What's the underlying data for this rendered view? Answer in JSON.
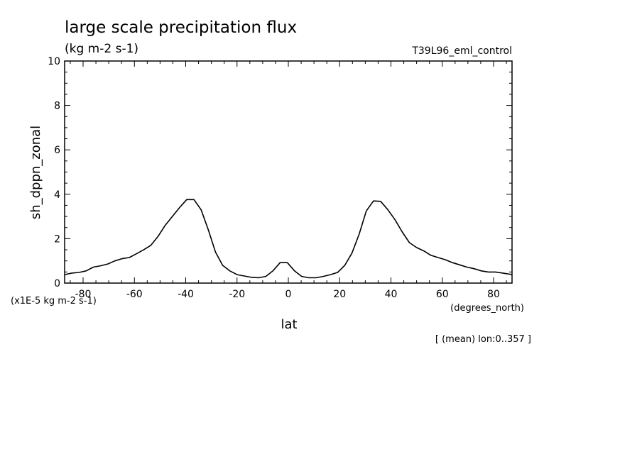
{
  "chart_data": {
    "type": "line",
    "title": "large scale precipitation flux",
    "units": "(kg m-2 s-1)",
    "experiment": "T39L96_eml_control",
    "ylabel": "sh_dppn_zonal",
    "xlabel": "lat",
    "x_units": "(degrees_north)",
    "y_scale_note": "(x1E-5 kg m-2 s-1)",
    "footnote": "[ (mean) lon:0..357 ]",
    "xlim": [
      -87.2,
      87.2
    ],
    "ylim": [
      0,
      10
    ],
    "x_ticks": [
      -80,
      -60,
      -40,
      -20,
      0,
      20,
      40,
      60,
      80
    ],
    "x_tick_labels": [
      "-80",
      "-60",
      "-40",
      "-20",
      "0",
      "20",
      "40",
      "60",
      "80"
    ],
    "y_ticks": [
      0,
      2,
      4,
      6,
      8,
      10
    ],
    "y_tick_labels": [
      "0",
      "2",
      "4",
      "6",
      "8",
      "10"
    ],
    "line_color": "#000000",
    "series": [
      {
        "x": [
          -87.2,
          -84.4,
          -81.6,
          -78.8,
          -76.0,
          -73.2,
          -70.4,
          -67.6,
          -64.8,
          -62.0,
          -59.2,
          -56.4,
          -53.6,
          -50.8,
          -48.0,
          -45.2,
          -42.4,
          -39.6,
          -36.8,
          -34.0,
          -31.2,
          -28.4,
          -25.6,
          -22.8,
          -20.0,
          -17.2,
          -14.4,
          -11.6,
          -8.8,
          -6.0,
          -3.2,
          -0.4,
          2.4,
          5.2,
          8.0,
          10.8,
          13.6,
          16.4,
          19.2,
          22.0,
          24.8,
          27.6,
          30.4,
          33.2,
          36.0,
          38.8,
          41.6,
          44.4,
          47.2,
          50.0,
          52.8,
          55.6,
          58.4,
          61.2,
          64.0,
          66.8,
          69.6,
          72.4,
          75.2,
          78.0,
          80.8,
          83.6,
          86.4,
          87.2
        ],
        "y": [
          0.38,
          0.45,
          0.48,
          0.55,
          0.72,
          0.78,
          0.86,
          1.0,
          1.1,
          1.15,
          1.32,
          1.5,
          1.7,
          2.1,
          2.6,
          3.0,
          3.4,
          3.76,
          3.76,
          3.3,
          2.4,
          1.4,
          0.8,
          0.55,
          0.38,
          0.32,
          0.26,
          0.24,
          0.3,
          0.55,
          0.92,
          0.92,
          0.55,
          0.3,
          0.24,
          0.24,
          0.3,
          0.38,
          0.48,
          0.8,
          1.35,
          2.2,
          3.25,
          3.7,
          3.68,
          3.3,
          2.85,
          2.3,
          1.82,
          1.6,
          1.45,
          1.25,
          1.15,
          1.05,
          0.92,
          0.82,
          0.72,
          0.65,
          0.55,
          0.5,
          0.5,
          0.45,
          0.4,
          0.38
        ]
      }
    ]
  }
}
